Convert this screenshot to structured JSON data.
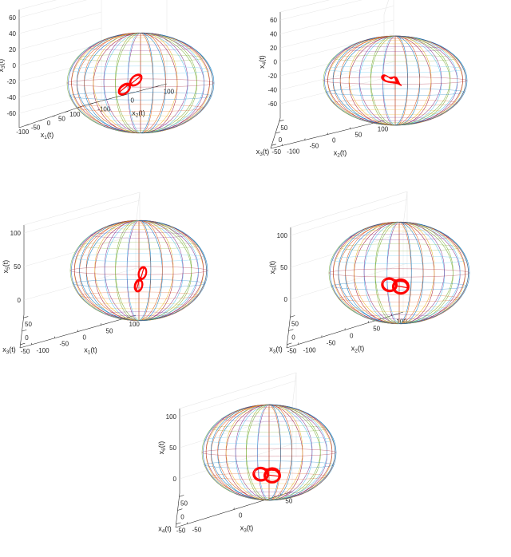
{
  "chart_data": [
    {
      "type": "3d-line",
      "xlabel": "x_1(t)",
      "ylabel": "x_2(t)",
      "zlabel": "x_3(t)",
      "xticks": [
        "-100",
        "-50",
        "0",
        "50",
        "100"
      ],
      "yticks": [
        "-100",
        "0",
        "100"
      ],
      "zticks": [
        "60",
        "40",
        "20",
        "0",
        "-20",
        "-40",
        "-60"
      ],
      "surface": "ellipsoid mesh, multicolored meridians",
      "trajectory_color": "#ff0000"
    },
    {
      "type": "3d-line",
      "xlabel": "x_3(t)",
      "ylabel": "x_2(t)",
      "zlabel": "x_4(t)",
      "xticks": [
        "50",
        "0",
        "-50"
      ],
      "yticks": [
        "-100",
        "-50",
        "0",
        "50",
        "100"
      ],
      "zticks": [
        "60",
        "40",
        "20",
        "0",
        "-20",
        "-40",
        "-60"
      ],
      "surface": "ellipsoid mesh, multicolored meridians",
      "trajectory_color": "#ff0000"
    },
    {
      "type": "3d-line",
      "xlabel": "x_3(t)",
      "ylabel": "x_1(t)",
      "zlabel": "x_5(t)",
      "xticks": [
        "50",
        "0",
        "-50"
      ],
      "yticks": [
        "-100",
        "-50",
        "0",
        "50",
        "100"
      ],
      "zticks": [
        "100",
        "50",
        "0"
      ],
      "surface": "ellipsoid mesh, multicolored meridians",
      "trajectory_color": "#ff0000"
    },
    {
      "type": "3d-line",
      "xlabel": "x_3(t)",
      "ylabel": "x_2(t)",
      "zlabel": "x_5(t)",
      "xticks": [
        "50",
        "0",
        "-50"
      ],
      "yticks": [
        "-100",
        "-50",
        "0",
        "50",
        "100"
      ],
      "zticks": [
        "100",
        "50",
        "0"
      ],
      "surface": "ellipsoid mesh, multicolored meridians",
      "trajectory_color": "#ff0000"
    },
    {
      "type": "3d-line",
      "xlabel": "x_4(t)",
      "ylabel": "x_3(t)",
      "zlabel": "x_6(t)",
      "xticks": [
        "50",
        "0",
        "-50"
      ],
      "yticks": [
        "-50",
        "0",
        "50"
      ],
      "zticks": [
        "100",
        "50",
        "0"
      ],
      "surface": "ellipsoid mesh, multicolored meridians",
      "trajectory_color": "#ff0000"
    }
  ],
  "colors": [
    "#0072bd",
    "#d95319",
    "#edb120",
    "#7e2f8e",
    "#77ac30",
    "#4dbeee",
    "#a2142f"
  ]
}
